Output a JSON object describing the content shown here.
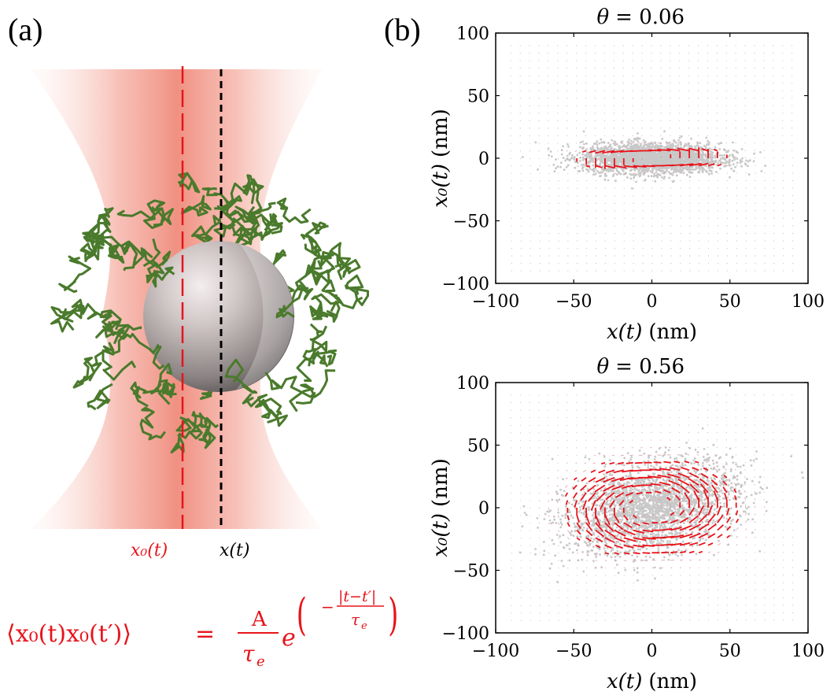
{
  "panel_a": {
    "letter": "(a)",
    "label_x0": "x₀(t)",
    "label_x": "x(t)",
    "formula": {
      "lhs": "⟨x₀(t)x₀(t′)⟩",
      "eq": "=",
      "num": "A",
      "den": "τ",
      "den_sub": "e",
      "base": "e",
      "exp_sign": "−",
      "exp_num": "|t−t′|",
      "exp_den": "τ",
      "exp_den_sub": "e",
      "color": "#e8141b"
    }
  },
  "panel_b": {
    "letter": "(b)"
  },
  "chart_data": [
    {
      "type": "scatter",
      "title_lhs": "θ",
      "title_rhs": "= 0.06",
      "theta": 0.06,
      "xlabel_var": "x(t)",
      "xlabel_unit": "(nm)",
      "ylabel_var": "x₀(t)",
      "ylabel_unit": "(nm)",
      "xlim": [
        -100,
        100
      ],
      "ylim": [
        -100,
        100
      ],
      "xticks": [
        -100,
        -50,
        0,
        50,
        100
      ],
      "yticks": [
        100,
        50,
        0,
        -50,
        -100
      ],
      "grid": false,
      "cloud": {
        "sigma_x": 22,
        "sigma_y": 6,
        "rho": 0.0
      },
      "flow": {
        "x_semi": 33,
        "y_semi": 8,
        "rotation": "counterclockwise"
      }
    },
    {
      "type": "scatter",
      "title_lhs": "θ",
      "title_rhs": "= 0.56",
      "theta": 0.56,
      "xlabel_var": "x(t)",
      "xlabel_unit": "(nm)",
      "ylabel_var": "x₀(t)",
      "ylabel_unit": "(nm)",
      "xlim": [
        -100,
        100
      ],
      "ylim": [
        -100,
        100
      ],
      "xticks": [
        -100,
        -50,
        0,
        50,
        100
      ],
      "yticks": [
        100,
        50,
        0,
        -50,
        -100
      ],
      "grid": false,
      "cloud": {
        "sigma_x": 27,
        "sigma_y": 18,
        "rho": 0.35
      },
      "flow": {
        "x_semi": 40,
        "y_semi": 28,
        "rotation": "counterclockwise"
      }
    }
  ],
  "colors": {
    "points": "#c8c8c8",
    "arrows": "#e8141b",
    "beam": "#f08a7e",
    "polymer": "#4a7a2c",
    "sphere": "#bdb4b4"
  }
}
